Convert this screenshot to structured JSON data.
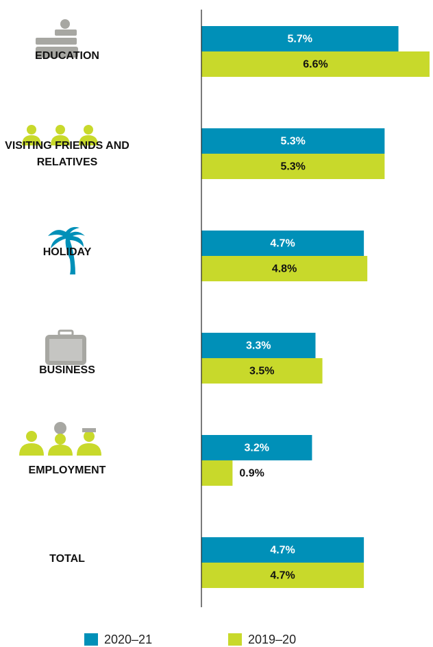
{
  "chart_data": {
    "type": "hbar",
    "categories": [
      "EDUCATION",
      "VISITING FRIENDS AND RELATIVES",
      "HOLIDAY",
      "BUSINESS",
      "EMPLOYMENT",
      "TOTAL"
    ],
    "series": [
      {
        "name": "2020–21",
        "color": "#0090b8",
        "values": [
          5.7,
          5.3,
          4.7,
          3.3,
          3.2,
          4.7
        ],
        "value_labels": [
          "5.7%",
          "5.3%",
          "4.7%",
          "3.3%",
          "3.2%",
          "4.7%"
        ]
      },
      {
        "name": "2019–20",
        "color": "#c8d92b",
        "values": [
          6.6,
          5.3,
          4.8,
          3.5,
          0.9,
          4.7
        ],
        "value_labels": [
          "6.6%",
          "5.3%",
          "4.8%",
          "3.5%",
          "0.9%",
          "4.7%"
        ]
      }
    ],
    "xlim": [
      0,
      6.7
    ]
  }
}
